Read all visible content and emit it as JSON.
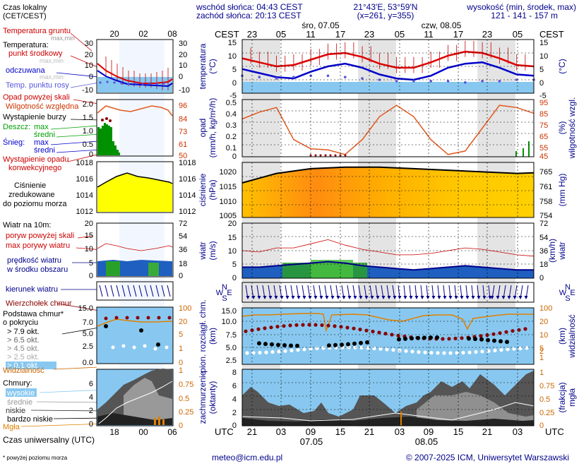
{
  "header": {
    "sunrise": "wschód słońca: 04:43 CEST",
    "sunset": "zachód słońca: 20:13 CEST",
    "coords": "21°43'E, 53°59'N",
    "grid": "(x=261, y=355)",
    "height_label": "wysokość (min, środek, max)",
    "height_values": "121 - 141 - 157 m",
    "day1": "śro, 07.05",
    "day2": "czw, 08.05"
  },
  "left": {
    "local_time": "Czas lokalny",
    "local_time_zone": "(CET/CEST)",
    "local_ticks": [
      "20",
      "02",
      "08"
    ],
    "soil_temp": "Temperatura gruntu",
    "soil_temp_sub": "max,min",
    "temp": "Temperatura:",
    "temp_mid": "punkt środkowy",
    "temp_range": "max,min",
    "temp_felt": "odczuwana",
    "temp_range2": "max,min",
    "dew": "Temp. punktu rosy",
    "precip_over": "Opad powyżej skali",
    "humidity": "Wilgotność względna",
    "storm": "Wystąpienie burzy",
    "rain": "Deszcz:",
    "rain_max": "max",
    "rain_mean": "średni",
    "snow": "Śnieg:",
    "snow_max": "max",
    "snow_mean": "średni",
    "conv1": "Wystąpienie opadu",
    "conv2": "konwekcyjnego",
    "pressure1": "Ciśnienie",
    "pressure2": "zredukowane",
    "pressure3": "do poziomu morza",
    "wind_title": "Wiatr na 10m:",
    "gust_over": "poryw powyżej skali",
    "gust_max": "max porywy wiatru",
    "wind_speed1": "prędkość wiatru",
    "wind_speed2": "w środku obszaru",
    "wind_dir": "kierunek wiatru",
    "cloud_top": "Wierzchołek chmur",
    "cloud_base1": "Podstawa chmur*",
    "cloud_base2": "o pokryciu",
    "okt": [
      "> 7.9 okt.",
      "> 6.5 okt.",
      "> 4.5 okt.",
      "> 2.5 okt.",
      "> 0.1 okt."
    ],
    "visibility": "Widzialność",
    "clouds": "Chmury:",
    "cl_high": "wysokie",
    "cl_mid": "średnie",
    "cl_low": "niskie",
    "cl_vlow": "bardzo niskie",
    "fog": "Mgła",
    "utc_time": "Czas uniwersalny (UTC)",
    "utc_ticks": [
      "18",
      "00",
      "06"
    ],
    "footnote": "* powyżej poziomu morza"
  },
  "main": {
    "cest": "CEST",
    "utc": "UTC",
    "top_ticks": [
      "23",
      "05",
      "11",
      "17",
      "23",
      "05",
      "11",
      "17",
      "23",
      "05"
    ],
    "bottom_ticks": [
      "21",
      "03",
      "09",
      "15",
      "21",
      "03",
      "09",
      "15",
      "21",
      "03"
    ],
    "date1": "07.05",
    "date2": "08.05",
    "temp_label": "temperatura",
    "temp_unit": "(°C)",
    "precip_label": "opad",
    "precip_unit": "(mm/h, kg/m²/h)",
    "hum_label": "wilgotność wzgl.",
    "hum_unit": "(%)",
    "pres_label": "ciśnienie",
    "pres_unit": "(hPa)",
    "pres_unit_r": "(mm Hg)",
    "wind_label": "wiatr",
    "wind_unit": "(m/s)",
    "wind_unit_r": "(km/h)",
    "cloud_label1": "pion. rozciągł. chm.",
    "cloud_label2": "(km)",
    "vis_label": "widzialność",
    "vis_unit": "(km)",
    "cover_label1": "zachmurzenie",
    "cover_label2": "(oktanty)",
    "fog_label1": "mgła",
    "fog_label2": "(frakcja)",
    "compass": [
      "N",
      "W",
      "E",
      "S"
    ]
  },
  "footer": {
    "email": "meteo@icm.edu.pl",
    "copyright": "© 2007-2025 ICM, Uniwersytet Warszawski"
  },
  "colors": {
    "red": "#dd0000",
    "blue": "#0000cc",
    "orange": "#e05a1e",
    "sky": "#88c8f0",
    "green": "#009000",
    "darkred": "#8a0000",
    "grey_band": "#e4e4e4"
  },
  "chart_data": [
    {
      "type": "line",
      "title": "temperatura",
      "ylabel": "(°C)",
      "ylim": [
        -5,
        15
      ],
      "yticks": [
        -5,
        0,
        5,
        10,
        15
      ],
      "hours": [
        0,
        3,
        6,
        9,
        12,
        15,
        18,
        21,
        24,
        27,
        30,
        33,
        36,
        39,
        42,
        45,
        48,
        51
      ],
      "series": [
        {
          "name": "punkt środkowy",
          "values": [
            8,
            6.5,
            5,
            5.5,
            7.5,
            9.5,
            10,
            8.5,
            6,
            4.5,
            4.5,
            6.5,
            9,
            10.5,
            10,
            8,
            5.5,
            5
          ]
        },
        {
          "name": "odczuwana",
          "values": [
            4,
            2.5,
            1,
            0.5,
            3,
            5,
            6,
            4.5,
            2,
            0.5,
            0,
            1.5,
            4.5,
            6,
            6.5,
            4.5,
            2,
            1.5
          ]
        },
        {
          "name": "Temp. punktu rosy",
          "values": [
            1.5,
            1,
            0.5,
            1,
            1.5,
            1.5,
            1,
            0.5,
            0,
            -0.5,
            -0.5,
            -0.5,
            -0.5,
            -1,
            -0.5,
            -0.5,
            0,
            0
          ]
        }
      ]
    },
    {
      "type": "line",
      "title": "opad / wilgotność wzgl.",
      "ylabel": "(mm/h, kg/m²/h)",
      "y2label": "(%)",
      "ylim": [
        0,
        0.5
      ],
      "y2lim": [
        45,
        95
      ],
      "yticks": [
        0,
        0.1,
        0.2,
        0.3,
        0.4,
        0.5
      ],
      "y2ticks": [
        45,
        55,
        65,
        75,
        85,
        95
      ],
      "hours": [
        0,
        3,
        6,
        9,
        12,
        15,
        18,
        21,
        24,
        27,
        30,
        33,
        36,
        39,
        42,
        45,
        48,
        51
      ],
      "series": [
        {
          "name": "Wilgotność względna",
          "values": [
            78,
            84,
            88,
            60,
            52,
            51,
            47,
            60,
            80,
            90,
            80,
            60,
            47,
            50,
            70,
            90,
            88,
            83
          ]
        }
      ]
    },
    {
      "type": "area",
      "title": "ciśnienie",
      "ylabel": "(hPa)",
      "y2label": "(mm Hg)",
      "ylim": [
        1005,
        1020
      ],
      "yticks": [
        1005,
        1010,
        1015,
        1020
      ],
      "y2ticks": [
        754,
        758,
        761,
        765
      ],
      "hours": [
        0,
        6,
        12,
        18,
        24,
        30,
        36,
        42,
        48,
        51
      ],
      "series": [
        {
          "name": "Ciśnienie",
          "values": [
            1015,
            1018,
            1019.5,
            1020,
            1020,
            1019.5,
            1019,
            1018.5,
            1018,
            1018.2
          ]
        }
      ]
    },
    {
      "type": "line",
      "title": "wiatr",
      "ylabel": "(m/s)",
      "y2label": "(km/h)",
      "ylim": [
        0,
        20
      ],
      "yticks": [
        0,
        5,
        10,
        15,
        20
      ],
      "y2ticks": [
        0,
        18,
        36,
        54,
        72
      ],
      "hours": [
        0,
        3,
        6,
        9,
        12,
        15,
        18,
        21,
        24,
        27,
        30,
        33,
        36,
        39,
        42,
        45,
        48,
        51
      ],
      "series": [
        {
          "name": "max porywy wiatru",
          "values": [
            10,
            9.5,
            11,
            11,
            12.5,
            14,
            12,
            10.5,
            9.5,
            8.5,
            8.5,
            9,
            10,
            11,
            10.5,
            9.5,
            8.5,
            8
          ]
        },
        {
          "name": "prędkość wiatru",
          "values": [
            4,
            4,
            4.5,
            5,
            5.5,
            6,
            5.5,
            4.5,
            4,
            3.5,
            3,
            3.5,
            4,
            4.5,
            4,
            3.5,
            3,
            3
          ]
        }
      ]
    },
    {
      "type": "scatter",
      "title": "pion. rozciągł. chm.",
      "ylabel": "(km)",
      "y2label": "widzialność (km)",
      "ylim": [
        0,
        15
      ],
      "yticks": [
        0,
        2.5,
        5,
        7.5,
        10,
        12.5,
        15
      ],
      "y2ticks": [
        0,
        1,
        2,
        5,
        10,
        20,
        100
      ]
    },
    {
      "type": "area",
      "title": "zachmurzenie",
      "ylabel": "(oktanty)",
      "y2label": "mgła (frakcja)",
      "ylim": [
        0,
        8
      ],
      "yticks": [
        0,
        2,
        4,
        6,
        8
      ],
      "y2ticks": [
        0,
        0.25,
        0.5,
        0.75,
        1
      ]
    }
  ]
}
